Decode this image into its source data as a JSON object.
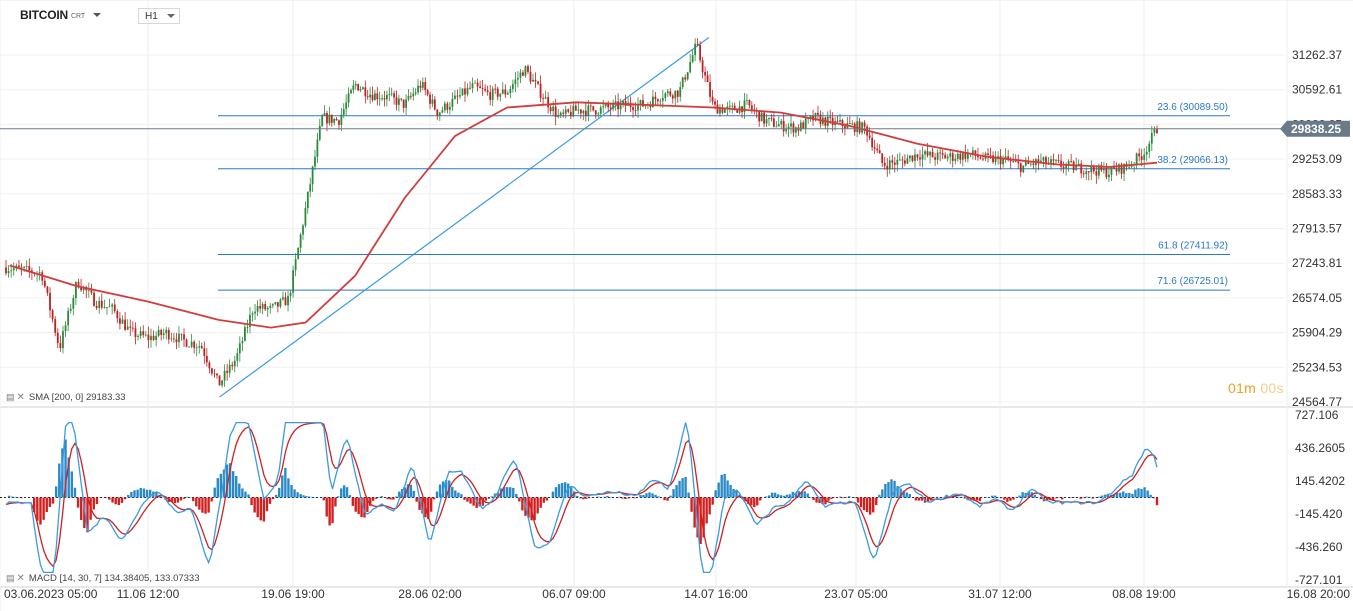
{
  "header": {
    "symbol": "BITCOIN",
    "symbol_sub": "CRT",
    "timeframe": "H1"
  },
  "indicators": {
    "sma": "SMA [200, 0] 29183.33",
    "macd": "MACD [14, 30, 7] 134.38405, 133.07333"
  },
  "countdown": {
    "minutes": "01m",
    "seconds": "00s"
  },
  "colors": {
    "sma": "#d23c3c",
    "fib": "#2a78c8",
    "trend": "#3a9be0",
    "macd_up": "#2a8ac8",
    "macd_down": "#d02020",
    "price_tag": "#6b7a88"
  },
  "chart_data": [
    {
      "type": "candlestick",
      "ylim": [
        24564.77,
        31262.37
      ],
      "y_ticks": [
        "31262.37",
        "30592.61",
        "29922.85",
        "29253.09",
        "28583.33",
        "27913.57",
        "27243.81",
        "26574.05",
        "25904.29",
        "25234.53",
        "24564.77"
      ],
      "x_ticks": [
        "03.06.2023 05:00",
        "11.06 12:00",
        "19.06 19:00",
        "28.06 02:00",
        "06.07 09:00",
        "14.07 16:00",
        "23.07 05:00",
        "31.07 12:00",
        "08.08 19:00",
        "16.08 20:00"
      ],
      "current_price": "29838.25",
      "fibonacci_levels": [
        {
          "label": "23.6 (30089.50)",
          "value": 30089.5
        },
        {
          "label": "38.2 (29066.13)",
          "value": 29066.13
        },
        {
          "label": "61.8 (27411.92)",
          "value": 27411.92
        },
        {
          "label": "71.6 (26725.01)",
          "value": 26725.01
        }
      ],
      "trend_line": {
        "from": {
          "x": "11.06 12:00",
          "y": 24660
        },
        "to": {
          "x": "14.07 16:00",
          "y": 31600
        }
      },
      "close_path": [
        [
          "03.06.2023 05:00",
          27150
        ],
        [
          "05.06",
          27050
        ],
        [
          "06.06",
          25600
        ],
        [
          "07.06",
          26900
        ],
        [
          "08.06",
          26500
        ],
        [
          "09.06",
          26350
        ],
        [
          "10.06",
          25900
        ],
        [
          "11.06",
          25800
        ],
        [
          "12.06",
          25900
        ],
        [
          "13.06",
          25750
        ],
        [
          "14.06",
          25650
        ],
        [
          "15.06",
          24900
        ],
        [
          "16.06",
          25400
        ],
        [
          "17.06",
          26400
        ],
        [
          "18.06",
          26350
        ],
        [
          "19.06",
          26550
        ],
        [
          "20.06",
          28300
        ],
        [
          "21.06",
          30050
        ],
        [
          "22.06",
          30000
        ],
        [
          "23.06",
          30700
        ],
        [
          "24.06",
          30500
        ],
        [
          "25.06",
          30450
        ],
        [
          "26.06",
          30300
        ],
        [
          "27.06",
          30700
        ],
        [
          "28.06",
          30150
        ],
        [
          "29.06",
          30400
        ],
        [
          "30.06",
          30650
        ],
        [
          "01.07",
          30500
        ],
        [
          "02.07",
          30550
        ],
        [
          "03.07",
          31000
        ],
        [
          "04.07",
          30500
        ],
        [
          "05.07",
          30050
        ],
        [
          "06.07",
          30200
        ],
        [
          "07.07",
          30200
        ],
        [
          "08.07",
          30250
        ],
        [
          "09.07",
          30300
        ],
        [
          "10.07",
          30300
        ],
        [
          "11.07",
          30500
        ],
        [
          "12.07",
          30550
        ],
        [
          "13.07",
          31450
        ],
        [
          "14.07",
          30250
        ],
        [
          "15.07",
          30200
        ],
        [
          "16.07",
          30300
        ],
        [
          "17.07",
          30000
        ],
        [
          "18.07",
          29900
        ],
        [
          "19.07",
          29850
        ],
        [
          "20.07",
          30050
        ],
        [
          "21.07",
          29950
        ],
        [
          "22.07",
          29900
        ],
        [
          "23.07",
          29850
        ],
        [
          "24.07",
          29150
        ],
        [
          "25.07",
          29200
        ],
        [
          "26.07",
          29350
        ],
        [
          "27.07",
          29300
        ],
        [
          "28.07",
          29300
        ],
        [
          "29.07",
          29350
        ],
        [
          "30.07",
          29250
        ],
        [
          "31.07",
          29250
        ],
        [
          "01.08",
          29100
        ],
        [
          "02.08",
          29200
        ],
        [
          "03.08",
          29150
        ],
        [
          "04.08",
          29100
        ],
        [
          "05.08",
          29050
        ],
        [
          "06.08",
          29000
        ],
        [
          "07.08",
          29100
        ],
        [
          "08.08",
          29350
        ],
        [
          "08.08 19:00",
          29838.25
        ]
      ],
      "sma_path": [
        [
          "03.06.2023 05:00",
          27200
        ],
        [
          "07.06",
          26800
        ],
        [
          "11.06",
          26500
        ],
        [
          "15.06",
          26150
        ],
        [
          "18.06",
          26000
        ],
        [
          "20.06",
          26100
        ],
        [
          "23.06",
          27000
        ],
        [
          "26.06",
          28500
        ],
        [
          "29.06",
          29700
        ],
        [
          "02.07",
          30250
        ],
        [
          "06.07",
          30350
        ],
        [
          "10.07",
          30300
        ],
        [
          "14.07",
          30250
        ],
        [
          "18.07",
          30150
        ],
        [
          "22.07",
          29900
        ],
        [
          "26.07",
          29550
        ],
        [
          "30.07",
          29300
        ],
        [
          "03.08",
          29150
        ],
        [
          "06.08",
          29100
        ],
        [
          "08.08 19:00",
          29183.33
        ]
      ]
    },
    {
      "type": "macd",
      "ylim": [
        -727.101,
        727.106
      ],
      "y_ticks": [
        "727.106",
        "436.2605",
        "145.4202",
        "-145.420",
        "-436.260",
        "-727.101"
      ],
      "params": [
        14,
        30,
        7
      ],
      "values": {
        "macd": 134.38405,
        "signal": 133.07333
      }
    }
  ]
}
